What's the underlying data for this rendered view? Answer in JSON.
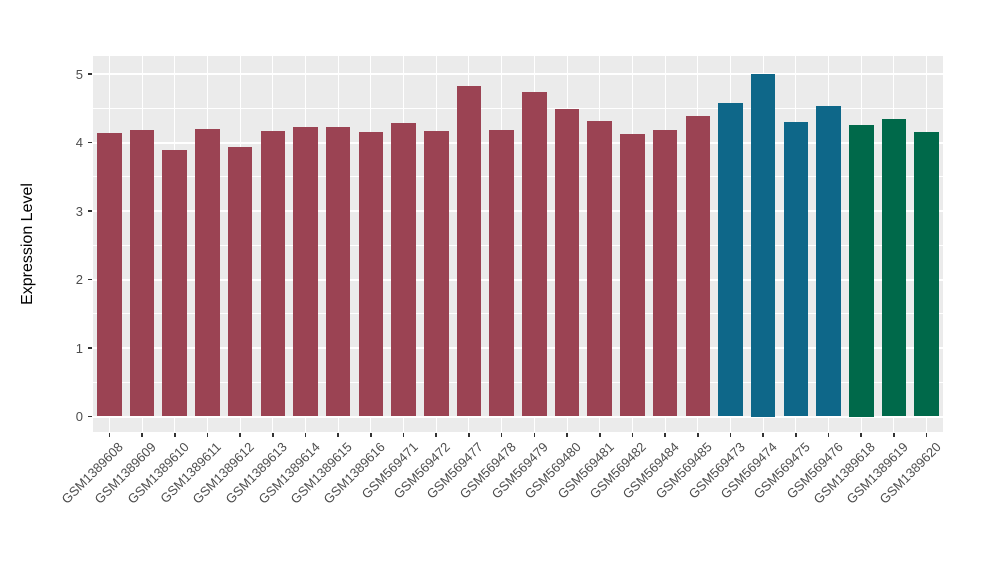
{
  "chart_data": {
    "type": "bar",
    "title": "",
    "xlabel": "",
    "ylabel": "Expression Level",
    "ylim": [
      0,
      5
    ],
    "yticks": [
      0,
      1,
      2,
      3,
      4,
      5
    ],
    "grid": "major and minor horizontal white gridlines, vertical white gridline at each category",
    "legend": "none",
    "panel_bg": "#EBEBEB",
    "grid_color": "#FFFFFF",
    "tick_color": "#333333",
    "axis_text_color": "#4D4D4D",
    "palette": {
      "maroon": "#9B4353",
      "blue": "#0E6789",
      "green": "#00694A"
    },
    "categories": [
      "GSM1389608",
      "GSM1389609",
      "GSM1389610",
      "GSM1389611",
      "GSM1389612",
      "GSM1389613",
      "GSM1389614",
      "GSM1389615",
      "GSM1389616",
      "GSM569471",
      "GSM569472",
      "GSM569477",
      "GSM569478",
      "GSM569479",
      "GSM569480",
      "GSM569481",
      "GSM569482",
      "GSM569484",
      "GSM569485",
      "GSM569473",
      "GSM569474",
      "GSM569475",
      "GSM569476",
      "GSM1389618",
      "GSM1389619",
      "GSM1389620"
    ],
    "values": [
      4.14,
      4.18,
      3.89,
      4.19,
      3.94,
      4.17,
      4.23,
      4.22,
      4.16,
      4.28,
      4.17,
      4.83,
      4.18,
      4.73,
      4.49,
      4.31,
      4.12,
      4.18,
      4.38,
      4.58,
      5.0,
      4.3,
      4.53,
      4.25,
      4.35,
      4.16
    ],
    "bar_colors": [
      "#9B4353",
      "#9B4353",
      "#9B4353",
      "#9B4353",
      "#9B4353",
      "#9B4353",
      "#9B4353",
      "#9B4353",
      "#9B4353",
      "#9B4353",
      "#9B4353",
      "#9B4353",
      "#9B4353",
      "#9B4353",
      "#9B4353",
      "#9B4353",
      "#9B4353",
      "#9B4353",
      "#9B4353",
      "#0E6789",
      "#0E6789",
      "#0E6789",
      "#0E6789",
      "#00694A",
      "#00694A",
      "#00694A"
    ]
  }
}
